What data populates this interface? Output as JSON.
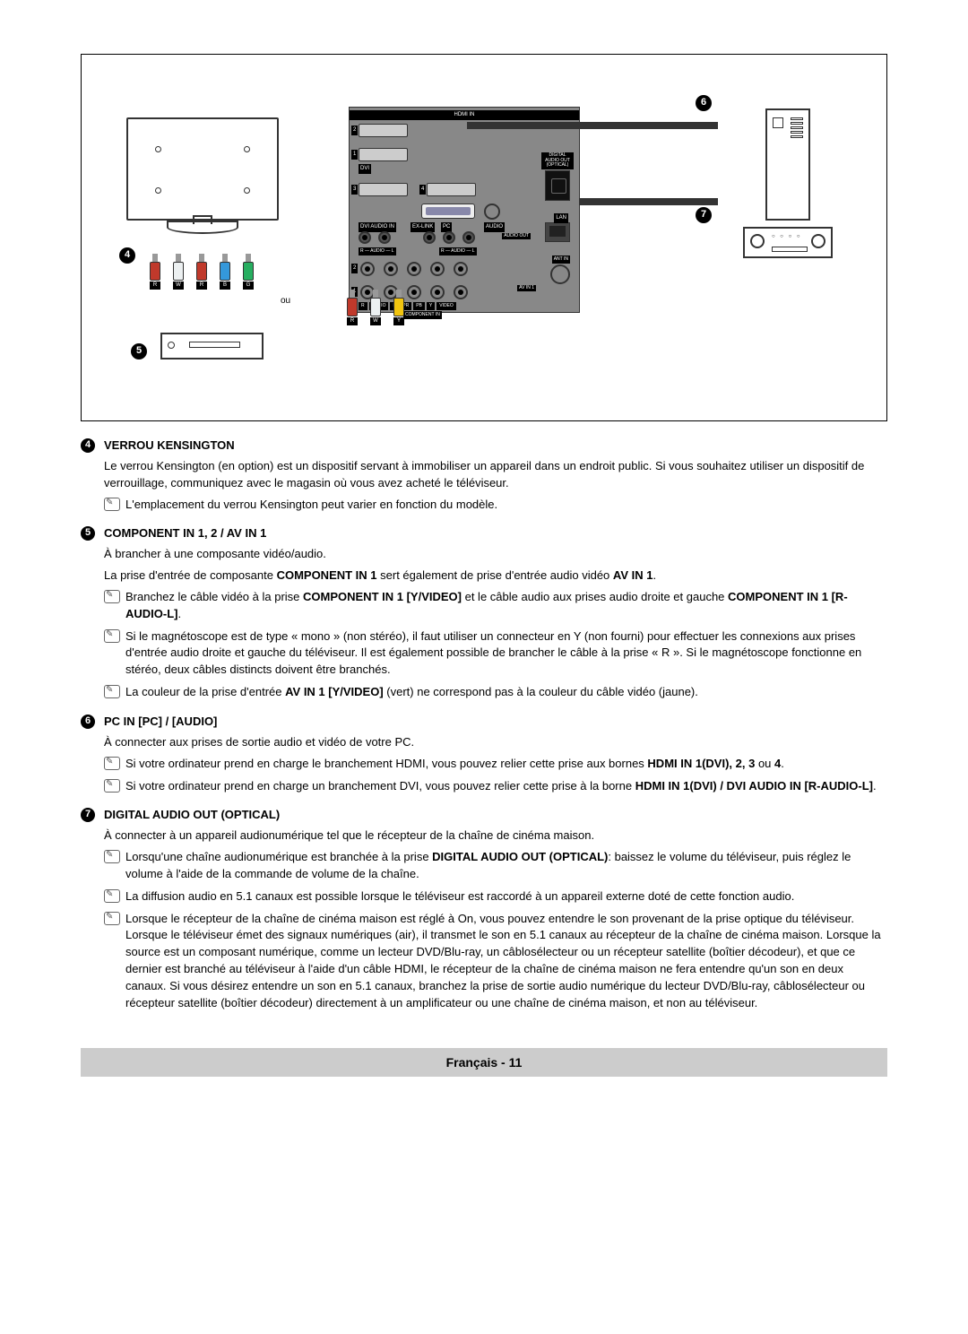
{
  "diagram": {
    "ou_label": "ou",
    "markers": {
      "m4": "4",
      "m5": "5",
      "m6": "6",
      "m7": "7"
    },
    "panel": {
      "hdmi_in": "HDMI IN",
      "dvi": "DVI",
      "dvi_audio_in": "DVI AUDIO IN",
      "ex_link": "EX-LINK",
      "pc": "PC",
      "audio": "AUDIO",
      "lan": "LAN",
      "digital_audio_out": "DIGITAL\nAUDIO OUT\n(OPTICAL)",
      "audio_out": "AUDIO OUT",
      "ant_in": "ANT IN",
      "av_in_1": "AV IN 1",
      "component_in": "COMPONENT IN",
      "r_audio_l": "R — AUDIO — L",
      "video": "VIDEO",
      "pr": "PR",
      "pb": "PB",
      "y": "Y"
    },
    "plugs_left": [
      {
        "tag": "R",
        "color": "#c0392b"
      },
      {
        "tag": "W",
        "color": "#ecf0f1"
      },
      {
        "tag": "R",
        "color": "#c0392b"
      },
      {
        "tag": "B",
        "color": "#3498db"
      },
      {
        "tag": "G",
        "color": "#27ae60"
      }
    ],
    "plugs_right": [
      {
        "tag": "R",
        "color": "#c0392b"
      },
      {
        "tag": "W",
        "color": "#ecf0f1"
      },
      {
        "tag": "Y",
        "color": "#f1c40f"
      }
    ]
  },
  "sections": {
    "s4": {
      "num": "4",
      "title": "VERROU KENSINGTON",
      "p1": "Le verrou Kensington (en option) est un dispositif servant à immobiliser un appareil dans un endroit public. Si vous souhaitez utiliser un dispositif de verrouillage, communiquez avec le magasin où vous avez acheté le téléviseur.",
      "n1": "L'emplacement du verrou Kensington peut varier en fonction du modèle."
    },
    "s5": {
      "num": "5",
      "title": "COMPONENT IN 1, 2 / AV IN 1",
      "p1": "À brancher à une composante vidéo/audio.",
      "p2a": "La prise d'entrée de composante ",
      "p2b": "COMPONENT IN 1",
      "p2c": " sert également de prise d'entrée audio vidéo ",
      "p2d": "AV IN 1",
      "p2e": ".",
      "n1a": "Branchez le câble vidéo à la prise ",
      "n1b": "COMPONENT IN 1 [Y/VIDEO]",
      "n1c": " et le câble audio aux prises audio droite et gauche ",
      "n1d": "COMPONENT IN 1 [R-AUDIO-L]",
      "n1e": ".",
      "n2": "Si le magnétoscope est de type « mono » (non stéréo), il faut utiliser un connecteur en Y (non fourni) pour effectuer les connexions aux prises d'entrée audio droite et gauche du téléviseur.  Il est également possible de brancher le câble à la prise « R ». Si le magnétoscope fonctionne en stéréo, deux câbles distincts doivent être branchés.",
      "n3a": "La couleur de la prise d'entrée ",
      "n3b": "AV IN 1 [Y/VIDEO]",
      "n3c": " (vert) ne correspond pas à la couleur du câble vidéo (jaune)."
    },
    "s6": {
      "num": "6",
      "title": "PC IN [PC] / [AUDIO]",
      "p1": "À connecter aux prises de sortie audio et vidéo de votre PC.",
      "n1a": "Si votre ordinateur prend en charge le branchement HDMI, vous pouvez relier cette prise aux bornes ",
      "n1b": "HDMI IN 1(DVI), 2, 3",
      "n1c": " ou ",
      "n1d": "4",
      "n1e": ".",
      "n2a": "Si votre ordinateur prend en charge un branchement DVI, vous pouvez relier cette prise à la borne ",
      "n2b": "HDMI IN 1(DVI) / DVI AUDIO IN [R-AUDIO-L]",
      "n2c": "."
    },
    "s7": {
      "num": "7",
      "title": "DIGITAL AUDIO OUT (OPTICAL)",
      "p1": "À connecter à un appareil audionumérique tel que le récepteur de la chaîne de cinéma maison.",
      "n1a": "Lorsqu'une chaîne audionumérique est branchée à la prise ",
      "n1b": "DIGITAL AUDIO OUT (OPTICAL)",
      "n1c": ": baissez le volume du téléviseur, puis réglez le volume à l'aide de la commande de volume de la chaîne.",
      "n2": "La diffusion audio en 5.1 canaux est possible lorsque le téléviseur est raccordé à un appareil externe doté de cette fonction audio.",
      "n3": "Lorsque le récepteur de la chaîne de cinéma maison est réglé à On, vous pouvez entendre le son provenant de la prise optique du téléviseur. Lorsque le téléviseur émet des signaux numériques (air), il transmet le son en 5.1 canaux au récepteur de la chaîne de cinéma maison. Lorsque la source est un composant numérique, comme un lecteur DVD/Blu-ray, un câblosélecteur ou un récepteur satellite (boîtier décodeur), et que ce dernier est branché au téléviseur à l'aide d'un câble HDMI, le récepteur de la chaîne de cinéma maison ne fera entendre qu'un son en deux canaux.  Si vous désirez entendre un son en 5.1 canaux, branchez la prise de sortie audio numérique du lecteur DVD/Blu-ray, câblosélecteur ou récepteur satellite (boîtier décodeur) directement à un amplificateur ou une chaîne de cinéma maison, et non au téléviseur."
    }
  },
  "footer": "Français - 11"
}
